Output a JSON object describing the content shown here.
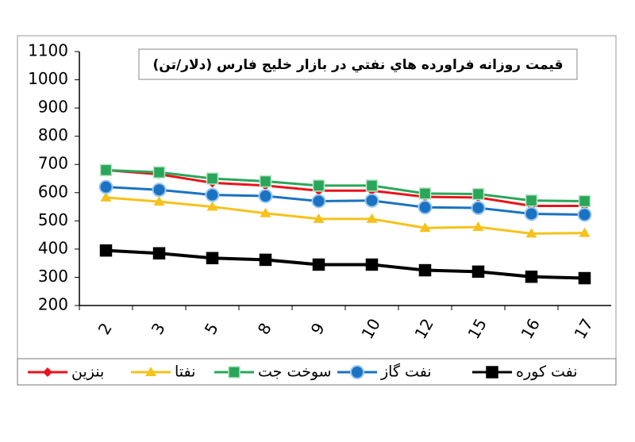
{
  "chart_data": {
    "type": "line",
    "title": "قيمت روزانه فراورده هاي نفتي در بازار خليج فارس (دلار/تن)",
    "categories": [
      "2",
      "3",
      "5",
      "8",
      "9",
      "10",
      "12",
      "15",
      "16",
      "17"
    ],
    "series": [
      {
        "name": "بنزين",
        "color": "#e8141b",
        "marker": "diamond",
        "values": [
          680,
          665,
          635,
          625,
          607,
          607,
          585,
          583,
          553,
          553
        ]
      },
      {
        "name": "نفتا",
        "color": "#f5c21b",
        "marker": "triangle",
        "values": [
          583,
          568,
          550,
          527,
          507,
          507,
          475,
          478,
          455,
          457
        ]
      },
      {
        "name": "سوخت جت",
        "color": "#2aa65a",
        "marker": "square",
        "values": [
          680,
          672,
          650,
          640,
          625,
          625,
          597,
          595,
          572,
          570
        ]
      },
      {
        "name": "نفت گاز",
        "color": "#1a72c2",
        "marker": "circle",
        "values": [
          620,
          610,
          592,
          588,
          570,
          572,
          548,
          546,
          525,
          522
        ]
      },
      {
        "name": "نفت كوره",
        "color": "#000000",
        "marker": "square",
        "values": [
          395,
          385,
          368,
          362,
          345,
          345,
          325,
          320,
          302,
          297
        ]
      }
    ],
    "ylim": [
      200,
      1100
    ],
    "yticks": [
      200,
      300,
      400,
      500,
      600,
      700,
      800,
      900,
      1000,
      1100
    ],
    "grid": false
  }
}
